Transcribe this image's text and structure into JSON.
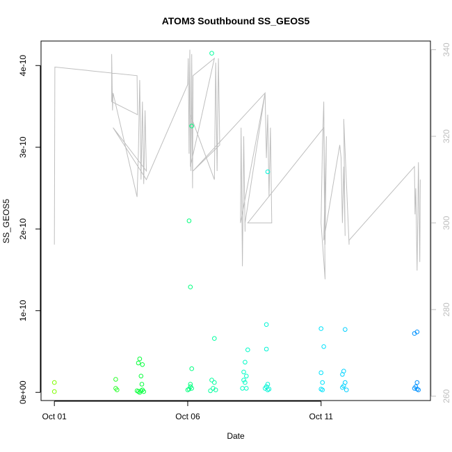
{
  "chart_data": {
    "type": "scatter",
    "title": "ATOM3 Southbound SS_GEOS5",
    "xlabel": "Date",
    "ylabel": "SS_GEOS5",
    "x_unit": "day of October 2016",
    "xlim": [
      0.5,
      15.1
    ],
    "ylim": [
      -1e-11,
      4.3e-10
    ],
    "y2lim": [
      259,
      342
    ],
    "x_ticks": [
      {
        "value": 1,
        "label": "Oct 01"
      },
      {
        "value": 6,
        "label": "Oct 06"
      },
      {
        "value": 11,
        "label": "Oct 11"
      }
    ],
    "y_ticks": [
      {
        "value": 0,
        "label": "0e+00"
      },
      {
        "value": 1e-10,
        "label": "1e-10"
      },
      {
        "value": 2e-10,
        "label": "2e-10"
      },
      {
        "value": 3e-10,
        "label": "3e-10"
      },
      {
        "value": 4e-10,
        "label": "4e-10"
      }
    ],
    "y2_ticks": [
      {
        "value": 260,
        "label": "260"
      },
      {
        "value": 280,
        "label": "280"
      },
      {
        "value": 300,
        "label": "300"
      },
      {
        "value": 320,
        "label": "320"
      },
      {
        "value": 340,
        "label": "340"
      }
    ],
    "grid": false,
    "legend": "none",
    "colors": {
      "points_gradient": [
        "#80ff00",
        "#00ff40",
        "#00ffc0",
        "#00e0ff",
        "#0090ff"
      ],
      "line": "#bebebe",
      "axis": "#000000",
      "right_axis": "#bebebe"
    },
    "series": [
      {
        "type": "scatter",
        "points": [
          [
            1.0,
            1.2e-11
          ],
          [
            1.0,
            1e-12
          ],
          [
            3.3,
            1.6e-11
          ],
          [
            3.3,
            5e-12
          ],
          [
            3.35,
            3e-12
          ],
          [
            4.15,
            3.6e-11
          ],
          [
            4.2,
            4.1e-11
          ],
          [
            4.3,
            3.4e-11
          ],
          [
            4.25,
            2e-11
          ],
          [
            4.28,
            1e-11
          ],
          [
            4.1,
            2e-12
          ],
          [
            4.15,
            1e-12
          ],
          [
            4.2,
            0.0
          ],
          [
            4.25,
            2e-12
          ],
          [
            4.3,
            3e-12
          ],
          [
            4.35,
            1e-12
          ],
          [
            6.05,
            2.1e-10
          ],
          [
            6.1,
            1.29e-10
          ],
          [
            6.15,
            3.26e-10
          ],
          [
            6.15,
            2.9e-11
          ],
          [
            6.1,
            1e-11
          ],
          [
            6.05,
            4e-12
          ],
          [
            6.1,
            7e-12
          ],
          [
            6.15,
            5e-12
          ],
          [
            6.0,
            3e-12
          ],
          [
            6.9,
            4.15e-10
          ],
          [
            7.0,
            6.6e-11
          ],
          [
            6.9,
            1.5e-11
          ],
          [
            7.0,
            1.2e-11
          ],
          [
            6.95,
            5e-12
          ],
          [
            7.05,
            3e-12
          ],
          [
            6.85,
            2e-12
          ],
          [
            8.1,
            2.5e-11
          ],
          [
            8.15,
            3.7e-11
          ],
          [
            8.2,
            2e-11
          ],
          [
            8.1,
            1.5e-11
          ],
          [
            8.15,
            1.2e-11
          ],
          [
            8.05,
            5e-12
          ],
          [
            8.2,
            5e-12
          ],
          [
            8.25,
            5.2e-11
          ],
          [
            9.0,
            2.7e-10
          ],
          [
            8.95,
            8.3e-11
          ],
          [
            8.95,
            5.3e-11
          ],
          [
            9.0,
            1e-11
          ],
          [
            8.95,
            7e-12
          ],
          [
            9.05,
            4e-12
          ],
          [
            8.9,
            5e-12
          ],
          [
            9.0,
            3e-12
          ],
          [
            11.0,
            7.8e-11
          ],
          [
            11.1,
            5.6e-11
          ],
          [
            11.0,
            2.4e-11
          ],
          [
            11.05,
            1.2e-11
          ],
          [
            11.0,
            4e-12
          ],
          [
            11.05,
            3e-12
          ],
          [
            11.9,
            7.7e-11
          ],
          [
            11.85,
            2.6e-11
          ],
          [
            11.8,
            2.2e-11
          ],
          [
            11.9,
            1.2e-11
          ],
          [
            11.85,
            8e-12
          ],
          [
            11.8,
            6e-12
          ],
          [
            11.95,
            3e-12
          ],
          [
            14.5,
            7.2e-11
          ],
          [
            14.6,
            7.4e-11
          ],
          [
            14.6,
            1.2e-11
          ],
          [
            14.55,
            7e-12
          ],
          [
            14.5,
            5e-12
          ],
          [
            14.6,
            4e-12
          ],
          [
            14.65,
            3e-12
          ]
        ]
      },
      {
        "type": "line",
        "axis": "right",
        "points": [
          [
            1.0,
            295
          ],
          [
            1.02,
            336
          ],
          [
            4.1,
            334
          ],
          [
            4.12,
            325
          ],
          [
            3.15,
            328
          ],
          [
            3.15,
            339
          ],
          [
            3.18,
            326
          ],
          [
            3.2,
            330
          ],
          [
            4.1,
            306
          ],
          [
            4.15,
            316
          ],
          [
            4.2,
            333
          ],
          [
            4.25,
            310
          ],
          [
            4.3,
            328
          ],
          [
            4.35,
            309
          ],
          [
            4.4,
            326
          ],
          [
            4.45,
            312
          ],
          [
            3.2,
            322
          ],
          [
            4.45,
            310
          ],
          [
            6.0,
            332
          ],
          [
            6.02,
            338
          ],
          [
            6.05,
            316
          ],
          [
            6.08,
            340
          ],
          [
            6.12,
            312
          ],
          [
            6.15,
            339
          ],
          [
            6.18,
            308
          ],
          [
            6.2,
            334
          ],
          [
            7.0,
            338
          ],
          [
            6.1,
            313
          ],
          [
            6.1,
            325
          ],
          [
            7.0,
            310
          ],
          [
            7.05,
            337
          ],
          [
            7.1,
            312
          ],
          [
            7.15,
            338
          ],
          [
            7.2,
            318
          ],
          [
            6.2,
            312
          ],
          [
            8.9,
            330
          ],
          [
            7.98,
            300
          ],
          [
            8.0,
            322
          ],
          [
            8.05,
            290
          ],
          [
            8.1,
            320
          ],
          [
            8.15,
            298
          ],
          [
            8.15,
            300
          ],
          [
            8.9,
            330
          ],
          [
            8.95,
            315
          ],
          [
            9.0,
            325
          ],
          [
            9.05,
            306
          ],
          [
            9.1,
            322
          ],
          [
            9.15,
            300
          ],
          [
            8.25,
            300
          ],
          [
            11.1,
            322
          ],
          [
            11.15,
            287
          ],
          [
            11.0,
            300
          ],
          [
            11.05,
            318
          ],
          [
            11.1,
            328
          ],
          [
            11.15,
            295
          ],
          [
            11.2,
            320
          ],
          [
            11.1,
            296
          ],
          [
            11.7,
            318
          ],
          [
            11.75,
            315
          ],
          [
            11.8,
            300
          ],
          [
            11.85,
            313
          ],
          [
            11.9,
            297
          ],
          [
            11.85,
            324
          ],
          [
            12.05,
            295
          ],
          [
            12.05,
            296
          ],
          [
            14.5,
            313
          ],
          [
            14.52,
            302
          ],
          [
            14.55,
            308
          ],
          [
            14.6,
            289
          ],
          [
            14.65,
            314
          ],
          [
            14.7,
            291
          ],
          [
            14.72,
            310
          ]
        ]
      }
    ]
  }
}
